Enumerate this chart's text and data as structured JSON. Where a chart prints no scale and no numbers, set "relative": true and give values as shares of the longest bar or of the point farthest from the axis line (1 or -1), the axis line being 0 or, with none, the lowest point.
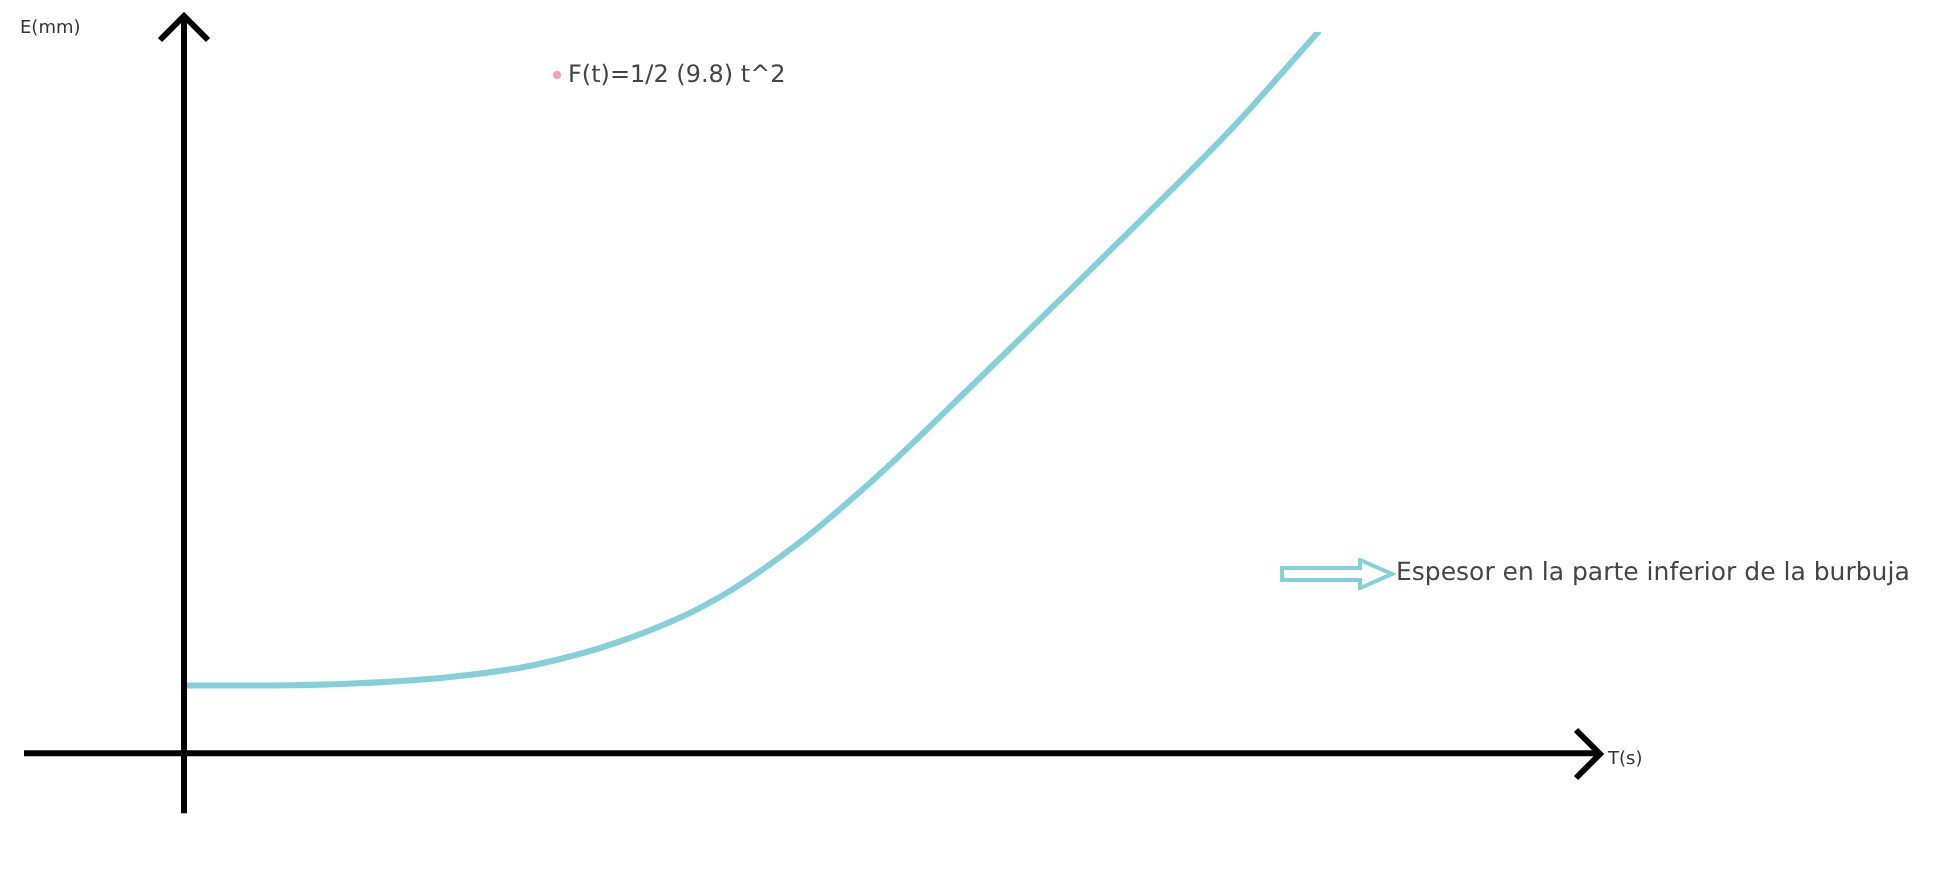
{
  "chart_data": {
    "type": "line",
    "relative": true,
    "xlabel": "T(s)",
    "ylabel": "E(mm)",
    "categories": [
      null,
      null,
      null,
      null,
      null,
      null,
      null,
      null,
      null,
      null,
      null,
      null,
      null,
      null,
      null,
      null,
      null
    ],
    "series": [
      {
        "color": "#84cfd9",
        "values": [
          0.094,
          0.094,
          0.097,
          0.105,
          0.122,
          0.155,
          0.207,
          0.287,
          0.39,
          0.506,
          0.624,
          0.743,
          0.865,
          1.0,
          null,
          null,
          null
        ]
      }
    ],
    "annotations": [
      "F(t)=1/2 (9.8) t^2",
      "Espesor en la parte inferior de la burbuja"
    ],
    "legend": false,
    "grid": false,
    "marker": "none",
    "line_style": "solid"
  }
}
